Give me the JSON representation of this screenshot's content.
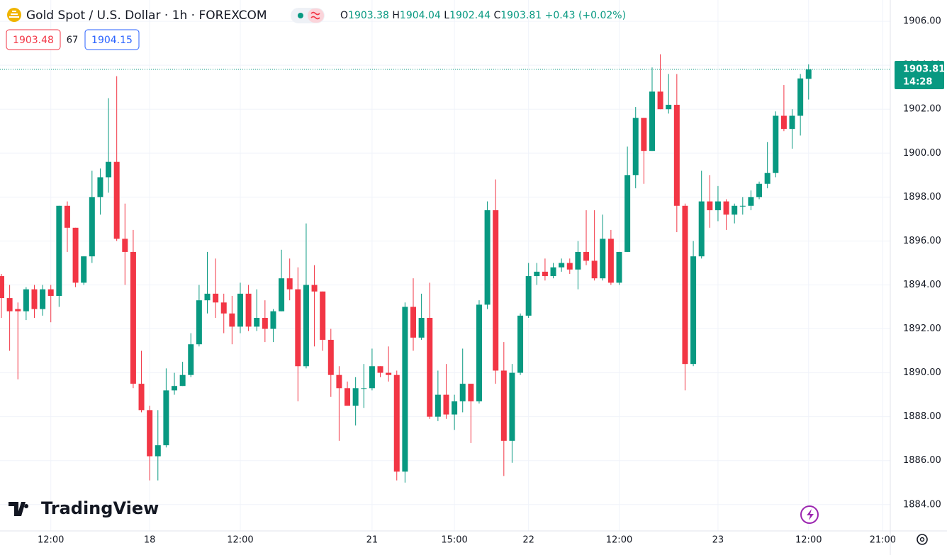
{
  "header": {
    "title": "Gold Spot / U.S. Dollar · 1h · FOREXCOM",
    "o": "O",
    "h": "H",
    "l": "L",
    "c": "C",
    "change": "+0.43 (+0.02%)"
  },
  "quote": {
    "bid": 1903.48,
    "spread": 67,
    "ask": 1904.15
  },
  "countdown": "14:28",
  "logo": "TradingView",
  "chart_data": {
    "type": "candlestick",
    "up_color": "#089981",
    "down_color": "#f23645",
    "grid": true,
    "categories": [
      null,
      null,
      null,
      null,
      null,
      null,
      "12:00",
      null,
      null,
      null,
      null,
      null,
      null,
      null,
      null,
      null,
      null,
      null,
      "18",
      null,
      null,
      null,
      null,
      null,
      null,
      null,
      null,
      null,
      null,
      "12:00",
      null,
      null,
      null,
      null,
      null,
      null,
      null,
      null,
      null,
      null,
      null,
      null,
      null,
      null,
      null,
      "21",
      null,
      null,
      null,
      null,
      null,
      null,
      null,
      null,
      null,
      "15:00",
      null,
      null,
      null,
      null,
      null,
      null,
      null,
      null,
      "22",
      null,
      null,
      null,
      null,
      null,
      null,
      null,
      null,
      null,
      null,
      "12:00",
      null,
      null,
      null,
      null,
      null,
      null,
      null,
      null,
      null,
      null,
      null,
      "23",
      null,
      null,
      null,
      null,
      null,
      null,
      null,
      null,
      null,
      null,
      "12:00",
      null,
      null,
      null,
      null,
      null,
      null,
      null,
      null,
      "21:00"
    ],
    "open": [
      1894.4,
      1893.4,
      1892.9,
      1892.8,
      1893.8,
      1892.9,
      1893.8,
      1893.5,
      1897.6,
      1896.6,
      1894.1,
      1895.3,
      1898,
      1898.9,
      1899.6,
      1896.1,
      1895.5,
      1889.5,
      1888.3,
      1886.2,
      1886.7,
      1889.2,
      1889.4,
      1889.9,
      1891.3,
      1893.3,
      1893.6,
      1893.2,
      1892.7,
      1892.1,
      1893.6,
      1892.1,
      1892.5,
      1892,
      1892.8,
      1894.3,
      1893.8,
      1890.3,
      1894,
      1893.7,
      1891.5,
      1889.9,
      1889.3,
      1888.5,
      1889.3,
      1889.3,
      1890.3,
      1890,
      1889.9,
      1885.5,
      1893,
      1891.6,
      1892.5,
      1888,
      1889,
      1888.1,
      1888.7,
      1889.5,
      1888.7,
      1893.1,
      1897.4,
      1890.1,
      1886.9,
      1890,
      1892.6,
      1894.4,
      1894.6,
      1894.4,
      1894.8,
      1895,
      1894.7,
      1895.5,
      1895.1,
      1894.3,
      1896.1,
      1894.1,
      1895.5,
      1899,
      1901.6,
      1900.1,
      1902.8,
      1902,
      1902.2,
      1897.6,
      1890.4,
      1895.3,
      1897.8,
      1897.4,
      1897.8,
      1897.2,
      1897.6,
      1897.6,
      1898,
      1898.6,
      1899.1,
      1901.7,
      1901.1,
      1901.7,
      1903.38,
      null,
      null,
      null,
      null,
      null,
      null,
      null,
      null,
      null
    ],
    "high": [
      1894.5,
      1894,
      1893.2,
      1893.9,
      1894,
      1894,
      1894,
      1897.6,
      1897.8,
      1896.6,
      1895.3,
      1899.2,
      1899.3,
      1902.5,
      1903.5,
      1897.7,
      1896.5,
      1891,
      1888.5,
      1888.3,
      1890.2,
      1890,
      1890.5,
      1891.8,
      1894,
      1895.5,
      1895.2,
      1893.6,
      1893.5,
      1894.1,
      1894,
      1893.8,
      1893.3,
      1892.9,
      1895.6,
      1895.2,
      1894.8,
      1896.8,
      1894.9,
      1893.7,
      1892,
      1890.3,
      1889.6,
      1889.8,
      1890.4,
      1891.1,
      1890.3,
      1891.2,
      1890.1,
      1893.2,
      1894.3,
      1893.6,
      1894.1,
      1890.1,
      1890.4,
      1889,
      1891.1,
      1889.5,
      1893.3,
      1897.8,
      1898.8,
      1891.4,
      1890.4,
      1892.7,
      1895,
      1895,
      1895.2,
      1895,
      1895.2,
      1895.2,
      1896,
      1897.4,
      1897.4,
      1897.2,
      1896.5,
      1895.5,
      1900.3,
      1902.1,
      1901.6,
      1903.9,
      1904.5,
      1903.6,
      1903.6,
      1897.7,
      1896,
      1899.2,
      1899,
      1898.5,
      1897.9,
      1897.7,
      1898,
      1898.3,
      1898.7,
      1900.5,
      1901.9,
      1903.1,
      1902,
      1903.6,
      1904.04,
      null,
      null,
      null,
      null,
      null,
      null,
      null,
      null,
      null
    ],
    "low": [
      1892.5,
      1891,
      1889.7,
      1892.4,
      1892.5,
      1892.6,
      1892.3,
      1893,
      1895.5,
      1893.9,
      1894,
      1895,
      1897.2,
      1898.2,
      1896,
      1894,
      1889.3,
      1888.2,
      1885.1,
      1885.1,
      1886.6,
      1889,
      1889.4,
      1889.8,
      1891.2,
      1892.7,
      1892.5,
      1891.8,
      1891.3,
      1891.8,
      1891.9,
      1891.9,
      1891.4,
      1891.4,
      1892.8,
      1893.3,
      1888.7,
      1890.2,
      1891.2,
      1891,
      1888.9,
      1886.9,
      1888.5,
      1887.6,
      1888.4,
      1889.2,
      1889.8,
      1889.6,
      1885.1,
      1885,
      1891,
      1891.5,
      1887.9,
      1887.8,
      1887.9,
      1887.4,
      1888.2,
      1886.8,
      1888.6,
      1892.9,
      1889.5,
      1885.3,
      1885.9,
      1889.9,
      1892.5,
      1894,
      1894.2,
      1894.3,
      1894.6,
      1894.5,
      1893.8,
      1894.9,
      1894.2,
      1894.2,
      1894,
      1894,
      1895.5,
      1898.4,
      1898.6,
      1900.1,
      1902,
      1901.8,
      1896.4,
      1889.2,
      1890.3,
      1895.2,
      1896.6,
      1896.9,
      1896.5,
      1896.8,
      1897.2,
      1897.4,
      1897.9,
      1898.4,
      1898.9,
      1901,
      1900.2,
      1900.8,
      1902.44,
      null,
      null,
      null,
      null,
      null,
      null,
      null,
      null,
      null
    ],
    "close": [
      1893.4,
      1892.8,
      1892.8,
      1893.8,
      1892.9,
      1893.8,
      1893.5,
      1897.6,
      1896.6,
      1894.1,
      1895.3,
      1898,
      1898.9,
      1899.6,
      1896.1,
      1895.5,
      1889.5,
      1888.3,
      1886.2,
      1886.7,
      1889.2,
      1889.4,
      1889.9,
      1891.3,
      1893.3,
      1893.6,
      1893.2,
      1892.7,
      1892.1,
      1893.6,
      1892.1,
      1892.5,
      1892,
      1892.8,
      1894.3,
      1893.8,
      1890.3,
      1894,
      1893.7,
      1891.5,
      1889.9,
      1889.3,
      1888.5,
      1889.3,
      1889.3,
      1890.3,
      1890,
      1889.9,
      1885.5,
      1893,
      1891.6,
      1892.5,
      1888,
      1889,
      1888.1,
      1888.7,
      1889.5,
      1888.7,
      1893.1,
      1897.4,
      1890.1,
      1886.9,
      1890,
      1892.6,
      1894.4,
      1894.6,
      1894.4,
      1894.8,
      1895,
      1894.7,
      1895.5,
      1895.1,
      1894.3,
      1896.1,
      1894.1,
      1895.5,
      1899,
      1901.6,
      1900.1,
      1902.8,
      1902,
      1902.2,
      1897.6,
      1890.4,
      1895.3,
      1897.8,
      1897.4,
      1897.8,
      1897.2,
      1897.6,
      1897.6,
      1898,
      1898.6,
      1899.1,
      1901.7,
      1901.1,
      1901.7,
      1903.4,
      1903.81,
      null,
      null,
      null,
      null,
      null,
      null,
      null,
      null,
      null
    ],
    "ylim": [
      1882.8,
      1906.97
    ],
    "yticks": [
      {
        "value": 1884,
        "label": "1884.00"
      },
      {
        "value": 1886,
        "label": "1886.00"
      },
      {
        "value": 1888,
        "label": "1888.00"
      },
      {
        "value": 1890,
        "label": "1890.00"
      },
      {
        "value": 1892,
        "label": "1892.00"
      },
      {
        "value": 1894,
        "label": "1894.00"
      },
      {
        "value": 1896,
        "label": "1896.00"
      },
      {
        "value": 1898,
        "label": "1898.00"
      },
      {
        "value": 1900,
        "label": "1900.00"
      },
      {
        "value": 1902,
        "label": "1902.00"
      },
      {
        "value": 1904,
        "label": "1904.00"
      },
      {
        "value": 1906,
        "label": "1906.00"
      }
    ]
  }
}
